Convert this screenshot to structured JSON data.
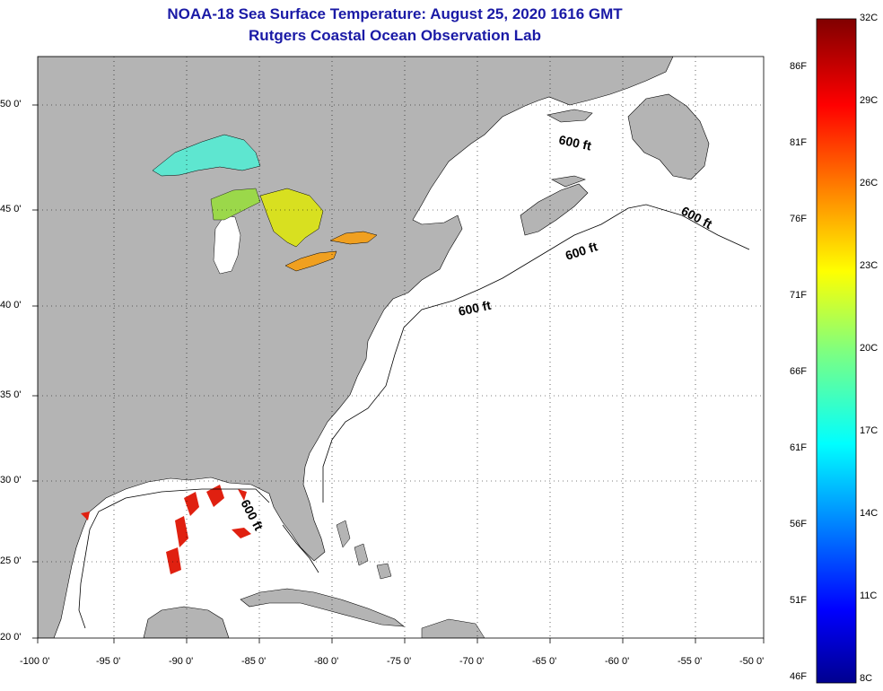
{
  "title": {
    "line1": "NOAA-18 Sea Surface Temperature:  August 25, 2020 1616 GMT",
    "line2": "Rutgers Coastal Ocean Observation Lab"
  },
  "axes": {
    "lon_labels": [
      "-100 0'",
      "-95 0'",
      "-90 0'",
      "-85 0'",
      "-80 0'",
      "-75 0'",
      "-70 0'",
      "-65 0'",
      "-60 0'",
      "-55 0'",
      "-50 0'"
    ],
    "lat_labels": [
      "50 0'",
      "45 0'",
      "40 0'",
      "35 0'",
      "30 0'",
      "25 0'",
      "20 0'"
    ]
  },
  "depth_contour_labels": [
    "600 ft",
    "600 ft",
    "600 ft",
    "600 ft",
    "600 ft"
  ],
  "colorbar": {
    "fahrenheit": [
      "86F",
      "81F",
      "76F",
      "71F",
      "66F",
      "61F",
      "56F",
      "51F",
      "46F"
    ],
    "celsius": [
      "32C",
      "29C",
      "26C",
      "23C",
      "20C",
      "17C",
      "14C",
      "11C",
      "8C"
    ]
  },
  "colors": {
    "land": "#b4b4b4",
    "water": "#ffffff",
    "title": "#1a1aa6",
    "grid": "#000000"
  }
}
